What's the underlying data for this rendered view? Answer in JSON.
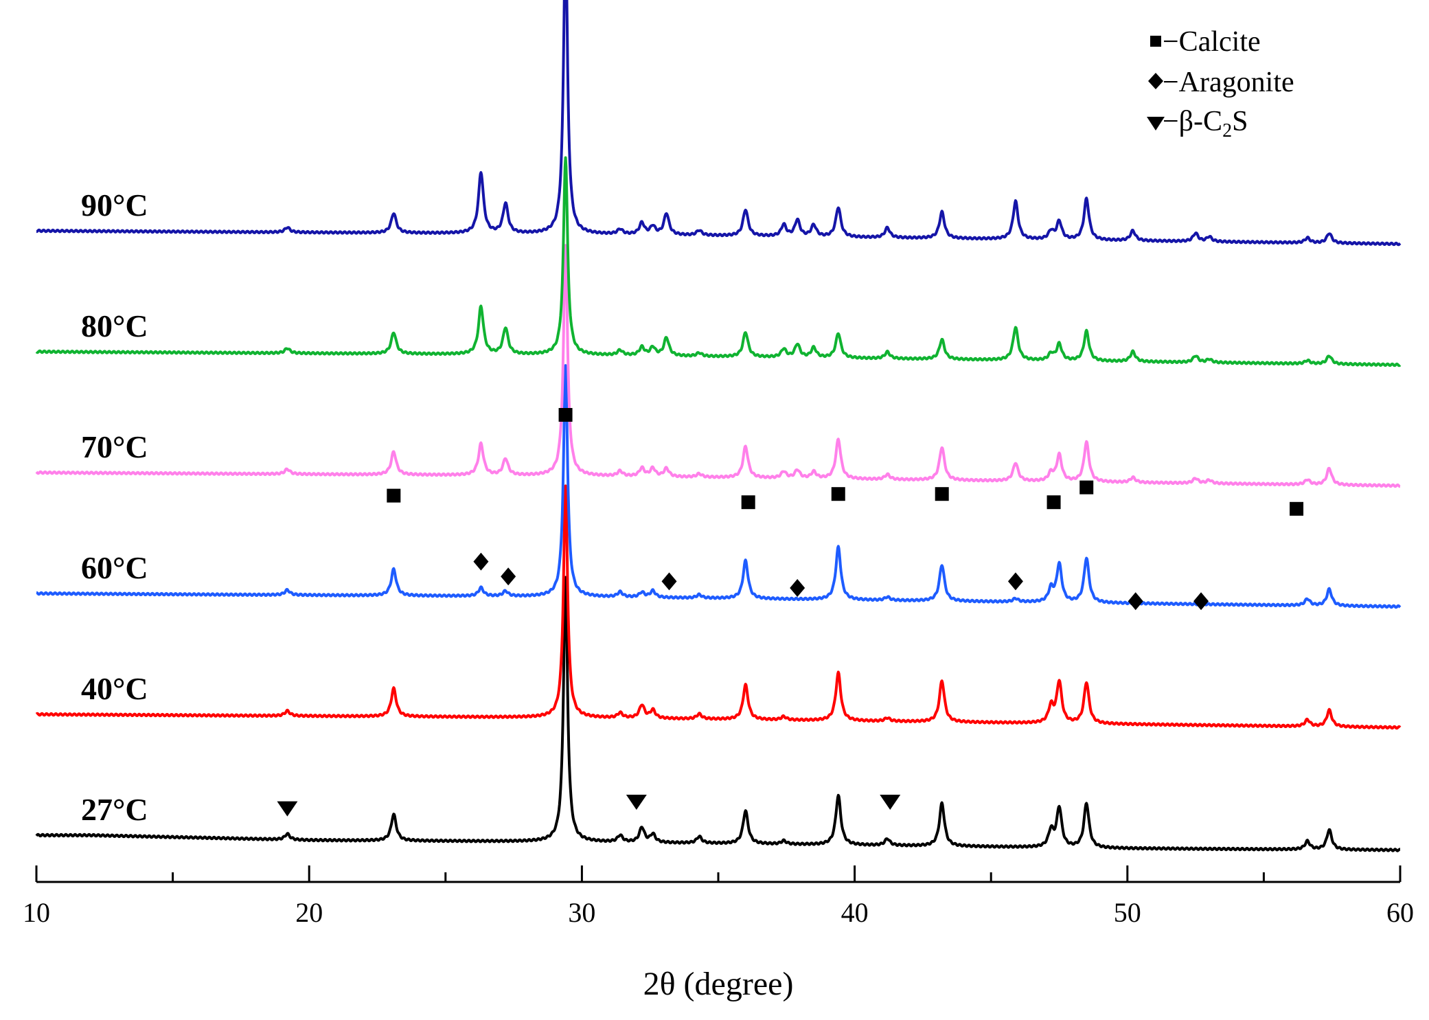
{
  "chart_data": {
    "type": "line",
    "title": "",
    "xlabel": "2θ (degree)",
    "ylabel": "",
    "xlim": [
      10,
      60
    ],
    "x_ticks": [
      10,
      20,
      30,
      40,
      50,
      60
    ],
    "grid": false,
    "legend": [
      {
        "symbol": "square",
        "label": "−Calcite"
      },
      {
        "symbol": "diamond",
        "label": "−Aragonite"
      },
      {
        "symbol": "triangle-down",
        "label": "−β-C",
        "subscript": "2",
        "suffix": "S"
      }
    ],
    "series": [
      {
        "name": "27°C",
        "color": "#000000",
        "offset": 0,
        "baseline": [
          [
            10,
            0.0
          ],
          [
            12,
            0.0
          ],
          [
            20,
            -0.3
          ],
          [
            30,
            -0.4
          ],
          [
            40,
            -0.6
          ],
          [
            50,
            -0.8
          ],
          [
            60,
            -0.9
          ]
        ],
        "peaks": [
          [
            19.2,
            0.35
          ],
          [
            23.1,
            1.6
          ],
          [
            29.4,
            16.0
          ],
          [
            31.4,
            0.4
          ],
          [
            32.2,
            0.9
          ],
          [
            32.6,
            0.5
          ],
          [
            34.3,
            0.4
          ],
          [
            36.0,
            2.0
          ],
          [
            37.4,
            0.2
          ],
          [
            39.4,
            3.0
          ],
          [
            41.2,
            0.4
          ],
          [
            43.2,
            2.6
          ],
          [
            47.2,
            1.0
          ],
          [
            47.5,
            2.4
          ],
          [
            48.5,
            2.7
          ],
          [
            56.6,
            0.5
          ],
          [
            57.4,
            1.2
          ]
        ]
      },
      {
        "name": "40°C",
        "color": "#ff0000",
        "offset": 1,
        "baseline": [
          [
            10,
            0.0
          ],
          [
            20,
            -0.1
          ],
          [
            30,
            -0.2
          ],
          [
            40,
            -0.4
          ],
          [
            50,
            -0.6
          ],
          [
            60,
            -0.8
          ]
        ],
        "peaks": [
          [
            19.2,
            0.3
          ],
          [
            23.1,
            1.7
          ],
          [
            29.4,
            14.0
          ],
          [
            31.4,
            0.3
          ],
          [
            32.2,
            0.8
          ],
          [
            32.6,
            0.5
          ],
          [
            34.3,
            0.3
          ],
          [
            36.0,
            2.1
          ],
          [
            37.4,
            0.2
          ],
          [
            39.4,
            2.9
          ],
          [
            41.2,
            0.2
          ],
          [
            43.2,
            2.5
          ],
          [
            47.2,
            1.0
          ],
          [
            47.5,
            2.5
          ],
          [
            48.5,
            2.5
          ],
          [
            56.6,
            0.4
          ],
          [
            57.4,
            1.0
          ]
        ]
      },
      {
        "name": "60°C",
        "color": "#1e5cff",
        "offset": 2,
        "baseline": [
          [
            10,
            0.0
          ],
          [
            20,
            -0.1
          ],
          [
            30,
            -0.2
          ],
          [
            40,
            -0.4
          ],
          [
            50,
            -0.6
          ],
          [
            60,
            -0.8
          ]
        ],
        "peaks": [
          [
            19.2,
            0.3
          ],
          [
            23.1,
            1.6
          ],
          [
            26.3,
            0.5
          ],
          [
            27.2,
            0.3
          ],
          [
            29.4,
            14.0
          ],
          [
            31.4,
            0.3
          ],
          [
            32.2,
            0.3
          ],
          [
            32.6,
            0.4
          ],
          [
            34.3,
            0.2
          ],
          [
            36.0,
            2.3
          ],
          [
            39.4,
            3.2
          ],
          [
            41.2,
            0.2
          ],
          [
            43.2,
            2.2
          ],
          [
            45.9,
            0.2
          ],
          [
            47.2,
            0.8
          ],
          [
            47.5,
            2.3
          ],
          [
            48.5,
            2.7
          ],
          [
            56.6,
            0.4
          ],
          [
            57.4,
            1.0
          ]
        ]
      },
      {
        "name": "70°C",
        "color": "#ff80ea",
        "offset": 3,
        "baseline": [
          [
            10,
            0.0
          ],
          [
            20,
            -0.1
          ],
          [
            30,
            -0.2
          ],
          [
            40,
            -0.4
          ],
          [
            50,
            -0.6
          ],
          [
            60,
            -0.8
          ]
        ],
        "peaks": [
          [
            19.2,
            0.3
          ],
          [
            23.1,
            1.4
          ],
          [
            26.3,
            1.9
          ],
          [
            27.2,
            1.0
          ],
          [
            29.4,
            14.0
          ],
          [
            31.4,
            0.3
          ],
          [
            32.2,
            0.5
          ],
          [
            32.6,
            0.5
          ],
          [
            33.1,
            0.5
          ],
          [
            34.3,
            0.2
          ],
          [
            36.0,
            1.9
          ],
          [
            37.4,
            0.4
          ],
          [
            37.9,
            0.5
          ],
          [
            38.5,
            0.4
          ],
          [
            39.4,
            2.4
          ],
          [
            41.2,
            0.3
          ],
          [
            43.2,
            2.0
          ],
          [
            45.9,
            1.1
          ],
          [
            47.2,
            0.5
          ],
          [
            47.5,
            1.6
          ],
          [
            48.5,
            2.4
          ],
          [
            50.2,
            0.3
          ],
          [
            52.5,
            0.3
          ],
          [
            53.0,
            0.2
          ],
          [
            56.6,
            0.3
          ],
          [
            57.4,
            1.0
          ]
        ]
      },
      {
        "name": "80°C",
        "color": "#10b331",
        "offset": 4,
        "baseline": [
          [
            10,
            0.0
          ],
          [
            20,
            -0.1
          ],
          [
            30,
            -0.2
          ],
          [
            40,
            -0.4
          ],
          [
            50,
            -0.6
          ],
          [
            60,
            -0.8
          ]
        ],
        "peaks": [
          [
            19.2,
            0.3
          ],
          [
            23.1,
            1.3
          ],
          [
            26.3,
            2.9
          ],
          [
            27.2,
            1.6
          ],
          [
            29.4,
            12.0
          ],
          [
            31.4,
            0.3
          ],
          [
            32.2,
            0.5
          ],
          [
            32.6,
            0.5
          ],
          [
            33.1,
            1.1
          ],
          [
            34.3,
            0.2
          ],
          [
            36.0,
            1.5
          ],
          [
            37.4,
            0.5
          ],
          [
            37.9,
            0.8
          ],
          [
            38.5,
            0.6
          ],
          [
            39.4,
            1.5
          ],
          [
            41.2,
            0.4
          ],
          [
            43.2,
            1.2
          ],
          [
            45.9,
            2.0
          ],
          [
            47.2,
            0.4
          ],
          [
            47.5,
            1.0
          ],
          [
            48.5,
            1.8
          ],
          [
            50.2,
            0.6
          ],
          [
            52.5,
            0.4
          ],
          [
            53.0,
            0.2
          ],
          [
            56.6,
            0.2
          ],
          [
            57.4,
            0.5
          ]
        ]
      },
      {
        "name": "90°C",
        "color": "#1515a8",
        "offset": 5,
        "baseline": [
          [
            10,
            0.0
          ],
          [
            20,
            -0.1
          ],
          [
            30,
            -0.2
          ],
          [
            40,
            -0.4
          ],
          [
            50,
            -0.6
          ],
          [
            60,
            -0.8
          ]
        ],
        "peaks": [
          [
            19.2,
            0.3
          ],
          [
            23.1,
            1.2
          ],
          [
            26.3,
            3.7
          ],
          [
            27.2,
            1.8
          ],
          [
            29.4,
            18.0
          ],
          [
            31.4,
            0.3
          ],
          [
            32.2,
            0.7
          ],
          [
            32.6,
            0.5
          ],
          [
            33.1,
            1.3
          ],
          [
            34.3,
            0.3
          ],
          [
            36.0,
            1.6
          ],
          [
            37.4,
            0.7
          ],
          [
            37.9,
            1.0
          ],
          [
            38.5,
            0.7
          ],
          [
            39.4,
            1.8
          ],
          [
            41.2,
            0.6
          ],
          [
            43.2,
            1.6
          ],
          [
            45.9,
            2.3
          ],
          [
            47.2,
            0.5
          ],
          [
            47.5,
            1.1
          ],
          [
            48.5,
            2.5
          ],
          [
            50.2,
            0.6
          ],
          [
            52.5,
            0.5
          ],
          [
            53.0,
            0.3
          ],
          [
            56.6,
            0.3
          ],
          [
            57.4,
            0.6
          ]
        ]
      }
    ],
    "annotations": [
      {
        "symbol": "square",
        "x": 29.4,
        "y": 25.5
      },
      {
        "symbol": "square",
        "x": 23.1,
        "y": 20.6
      },
      {
        "symbol": "square",
        "x": 36.1,
        "y": 20.2
      },
      {
        "symbol": "square",
        "x": 39.4,
        "y": 20.7
      },
      {
        "symbol": "square",
        "x": 43.2,
        "y": 20.7
      },
      {
        "symbol": "square",
        "x": 47.3,
        "y": 20.2
      },
      {
        "symbol": "square",
        "x": 48.5,
        "y": 21.1
      },
      {
        "symbol": "square",
        "x": 56.2,
        "y": 19.8
      },
      {
        "symbol": "diamond",
        "x": 26.3,
        "y": 16.6
      },
      {
        "symbol": "diamond",
        "x": 27.3,
        "y": 15.7
      },
      {
        "symbol": "diamond",
        "x": 33.2,
        "y": 15.4
      },
      {
        "symbol": "diamond",
        "x": 37.9,
        "y": 15.0
      },
      {
        "symbol": "diamond",
        "x": 45.9,
        "y": 15.4
      },
      {
        "symbol": "diamond",
        "x": 50.3,
        "y": 14.2
      },
      {
        "symbol": "diamond",
        "x": 52.7,
        "y": 14.2
      },
      {
        "symbol": "triangle-down",
        "x": 19.2,
        "y": 1.6
      },
      {
        "symbol": "triangle-down",
        "x": 32.0,
        "y": 2.0
      },
      {
        "symbol": "triangle-down",
        "x": 41.3,
        "y": 2.0
      }
    ]
  }
}
